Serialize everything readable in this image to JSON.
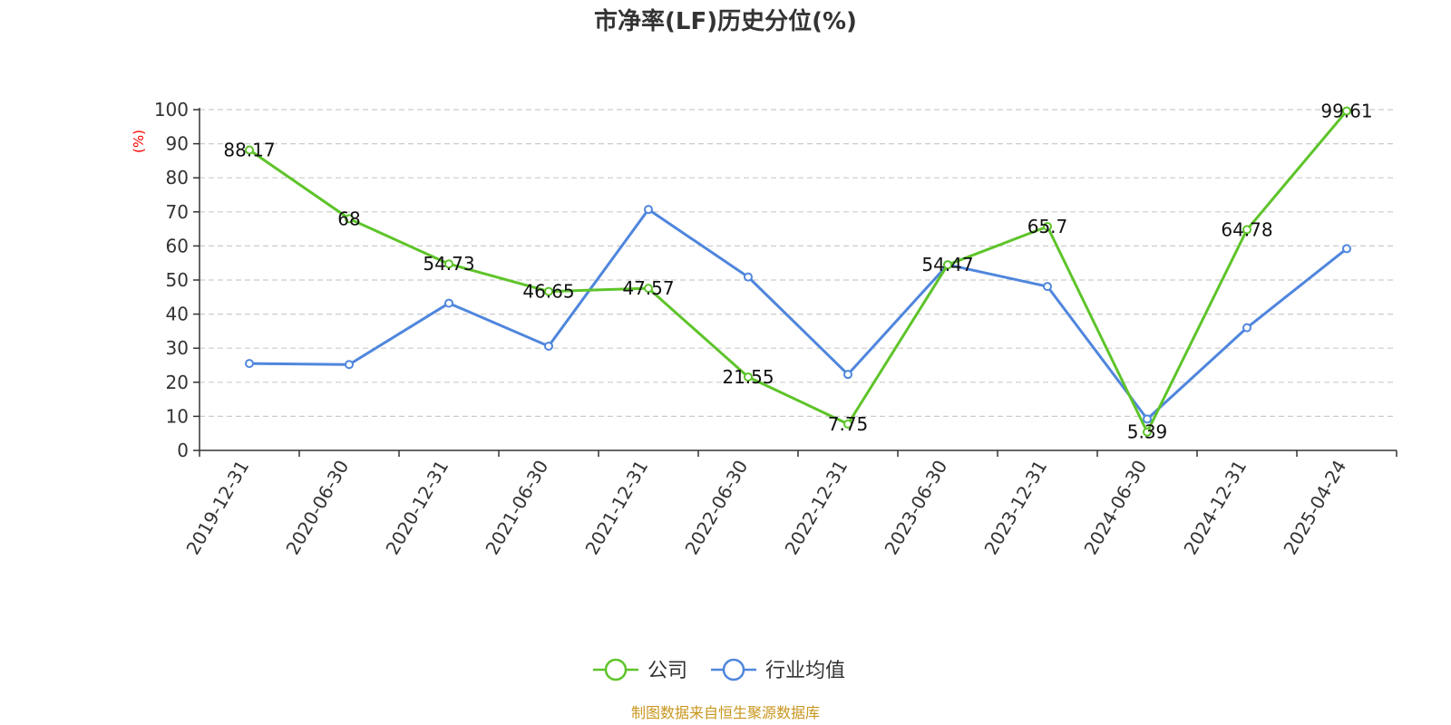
{
  "chart_data": {
    "type": "line",
    "title": "市净率(LF)历史分位(%)",
    "ylabel": "(%)",
    "ylim": [
      0,
      100
    ],
    "y_ticks": [
      0,
      10,
      20,
      30,
      40,
      50,
      60,
      70,
      80,
      90,
      100
    ],
    "categories": [
      "2019-12-31",
      "2020-06-30",
      "2020-12-31",
      "2021-06-30",
      "2021-12-31",
      "2022-06-30",
      "2022-12-31",
      "2023-06-30",
      "2023-12-31",
      "2024-06-30",
      "2024-12-31",
      "2025-04-24"
    ],
    "grid": true,
    "legend_position": "bottom",
    "series": [
      {
        "name": "公司",
        "color": "#5ec42a",
        "values": [
          88.17,
          68,
          54.73,
          46.65,
          47.57,
          21.55,
          7.75,
          54.47,
          65.7,
          5.39,
          64.78,
          99.61
        ],
        "labels": [
          "88.17",
          "68",
          "54.73",
          "46.65",
          "47.57",
          "21.55",
          "7.75",
          "54.47",
          "65.7",
          "5.39",
          "64.78",
          "99.61"
        ]
      },
      {
        "name": "行业均值",
        "color": "#4f86dd",
        "values": [
          25.5,
          25.2,
          43.2,
          30.6,
          70.7,
          50.9,
          22.3,
          54.5,
          48.1,
          9.2,
          36.0,
          59.2
        ]
      }
    ]
  },
  "source_text": "制图数据来自恒生聚源数据库"
}
